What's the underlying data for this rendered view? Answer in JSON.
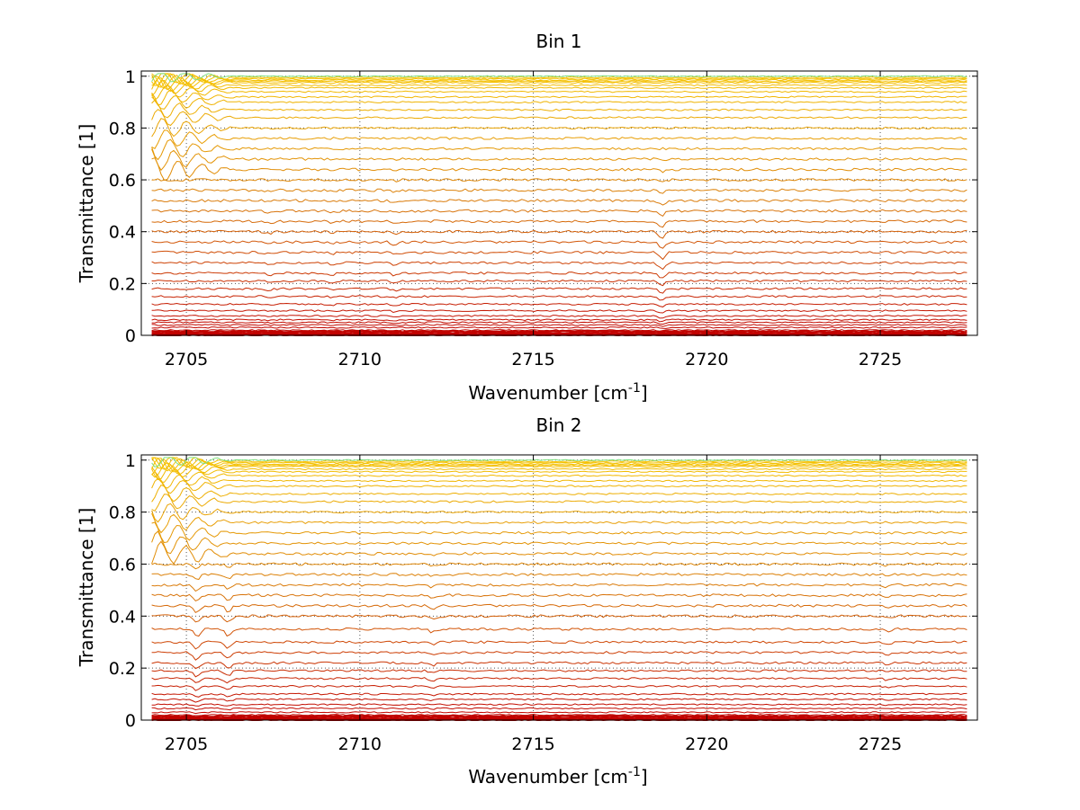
{
  "chart_data": [
    {
      "type": "line",
      "title": "Bin 1",
      "xlabel": "Wavenumber [cm",
      "xlabel_sup": "-1",
      "xlabel_tail": "]",
      "ylabel": "Transmittance [1]",
      "xlim": [
        2703.7,
        2727.8
      ],
      "ylim": [
        0,
        1.02
      ],
      "xticks": [
        2705,
        2710,
        2715,
        2720,
        2725
      ],
      "xtick_labels": [
        "2705",
        "2710",
        "2715",
        "2720",
        "2725"
      ],
      "yticks": [
        0,
        0.2,
        0.4,
        0.6,
        0.8,
        1
      ],
      "ytick_labels": [
        "0",
        "0.2",
        "0.4",
        "0.6",
        "0.8",
        "1"
      ],
      "grid": "dotted",
      "x_start": 2704.0,
      "x_end": 2727.5,
      "series_levels": [
        0.0,
        0.005,
        0.01,
        0.015,
        0.02,
        0.03,
        0.04,
        0.05,
        0.06,
        0.075,
        0.095,
        0.12,
        0.15,
        0.18,
        0.21,
        0.24,
        0.28,
        0.32,
        0.36,
        0.4,
        0.44,
        0.48,
        0.52,
        0.56,
        0.6,
        0.64,
        0.68,
        0.72,
        0.76,
        0.8,
        0.84,
        0.87,
        0.9,
        0.92,
        0.94,
        0.955,
        0.965,
        0.975,
        0.98,
        0.985,
        0.99,
        0.995,
        1.0
      ],
      "features": [
        {
          "x": 2718.7,
          "depth": 0.025
        },
        {
          "x": 2711.0,
          "depth": 0.01
        },
        {
          "x": 2707.4,
          "depth": 0.008
        },
        {
          "x": 2709.2,
          "depth": 0.007
        }
      ],
      "low_x_ripple": true,
      "color_low": "#c00000",
      "color_mid": "#d9780a",
      "color_high": "#f5c200",
      "color_top": "#7fe07f"
    },
    {
      "type": "line",
      "title": "Bin 2",
      "xlabel": "Wavenumber [cm",
      "xlabel_sup": "-1",
      "xlabel_tail": "]",
      "ylabel": "Transmittance [1]",
      "xlim": [
        2703.7,
        2727.8
      ],
      "ylim": [
        0,
        1.02
      ],
      "xticks": [
        2705,
        2710,
        2715,
        2720,
        2725
      ],
      "xtick_labels": [
        "2705",
        "2710",
        "2715",
        "2720",
        "2725"
      ],
      "yticks": [
        0,
        0.2,
        0.4,
        0.6,
        0.8,
        1
      ],
      "ytick_labels": [
        "0",
        "0.2",
        "0.4",
        "0.6",
        "0.8",
        "1"
      ],
      "grid": "dotted",
      "x_start": 2704.0,
      "x_end": 2727.5,
      "series_levels": [
        0.0,
        0.005,
        0.01,
        0.015,
        0.02,
        0.03,
        0.045,
        0.06,
        0.08,
        0.1,
        0.13,
        0.16,
        0.19,
        0.22,
        0.26,
        0.3,
        0.35,
        0.4,
        0.44,
        0.48,
        0.52,
        0.56,
        0.6,
        0.64,
        0.68,
        0.72,
        0.76,
        0.8,
        0.84,
        0.87,
        0.9,
        0.92,
        0.94,
        0.955,
        0.965,
        0.975,
        0.98,
        0.985,
        0.99,
        0.995,
        1.0
      ],
      "features": [
        {
          "x": 2705.3,
          "depth": 0.03
        },
        {
          "x": 2706.2,
          "depth": 0.025
        },
        {
          "x": 2712.1,
          "depth": 0.012
        },
        {
          "x": 2725.2,
          "depth": 0.01
        }
      ],
      "low_x_ripple": true,
      "color_low": "#c00000",
      "color_mid": "#d9780a",
      "color_high": "#f5c200",
      "color_top": "#7fe07f"
    }
  ]
}
